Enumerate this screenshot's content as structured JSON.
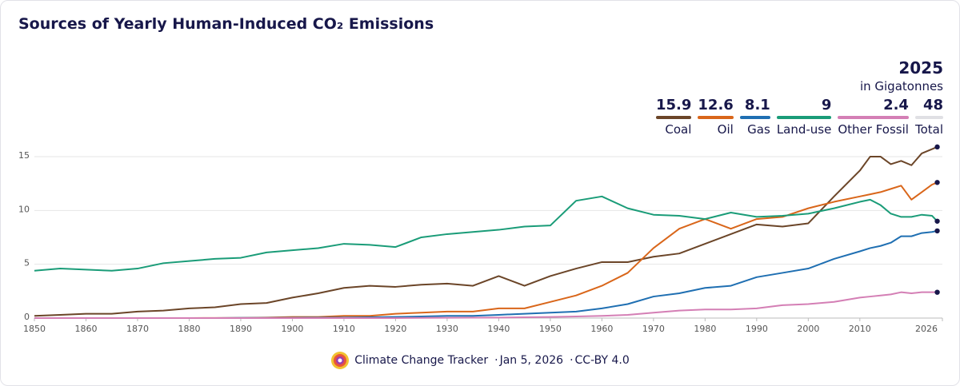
{
  "chart_data": {
    "type": "line",
    "title": "Sources of Yearly Human-Induced CO₂ Emissions",
    "unit": "in Gigatonnes",
    "total": 48,
    "total_label": "Total",
    "x": [
      1850,
      1855,
      1860,
      1865,
      1870,
      1875,
      1880,
      1885,
      1890,
      1895,
      1900,
      1905,
      1910,
      1915,
      1920,
      1925,
      1930,
      1935,
      1940,
      1945,
      1950,
      1955,
      1960,
      1965,
      1970,
      1975,
      1980,
      1985,
      1990,
      1995,
      2000,
      2005,
      2010,
      2012,
      2014,
      2016,
      2018,
      2020,
      2022,
      2024,
      2025
    ],
    "series": [
      {
        "name": "Coal",
        "color": "#6b4528",
        "values": [
          0.2,
          0.3,
          0.4,
          0.4,
          0.6,
          0.7,
          0.9,
          1.0,
          1.3,
          1.4,
          1.9,
          2.3,
          2.8,
          3.0,
          2.9,
          3.1,
          3.2,
          3.0,
          3.9,
          3.0,
          3.9,
          4.6,
          5.2,
          5.2,
          5.7,
          6.0,
          6.9,
          7.8,
          8.7,
          8.5,
          8.8,
          11.3,
          13.7,
          15.0,
          15.0,
          14.3,
          14.6,
          14.2,
          15.3,
          15.7,
          15.9
        ]
      },
      {
        "name": "Oil",
        "color": "#d9661a",
        "values": [
          0,
          0,
          0,
          0,
          0,
          0,
          0,
          0.01,
          0.02,
          0.05,
          0.1,
          0.1,
          0.2,
          0.2,
          0.4,
          0.5,
          0.6,
          0.6,
          0.9,
          0.9,
          1.5,
          2.1,
          3.0,
          4.2,
          6.5,
          8.3,
          9.2,
          8.3,
          9.2,
          9.4,
          10.2,
          10.8,
          11.3,
          11.5,
          11.7,
          12.0,
          12.3,
          11.0,
          11.7,
          12.4,
          12.6
        ]
      },
      {
        "name": "Gas",
        "color": "#1f6fb2",
        "values": [
          0,
          0,
          0,
          0,
          0,
          0,
          0,
          0,
          0.02,
          0.02,
          0.03,
          0.04,
          0.05,
          0.07,
          0.1,
          0.15,
          0.2,
          0.2,
          0.3,
          0.4,
          0.5,
          0.6,
          0.9,
          1.3,
          2.0,
          2.3,
          2.8,
          3.0,
          3.8,
          4.2,
          4.6,
          5.5,
          6.2,
          6.5,
          6.7,
          7.0,
          7.6,
          7.6,
          7.9,
          8.0,
          8.1
        ]
      },
      {
        "name": "Land-use",
        "color": "#1a9c78",
        "values": [
          4.4,
          4.6,
          4.5,
          4.4,
          4.6,
          5.1,
          5.3,
          5.5,
          5.6,
          6.1,
          6.3,
          6.5,
          6.9,
          6.8,
          6.6,
          7.5,
          7.8,
          8.0,
          8.2,
          8.5,
          8.6,
          10.9,
          11.3,
          10.2,
          9.6,
          9.5,
          9.2,
          9.8,
          9.4,
          9.5,
          9.7,
          10.2,
          10.8,
          11.0,
          10.5,
          9.7,
          9.4,
          9.4,
          9.6,
          9.5,
          9
        ]
      },
      {
        "name": "Other Fossil",
        "color": "#d47fb5",
        "values": [
          0,
          0,
          0,
          0,
          0,
          0,
          0,
          0,
          0,
          0,
          0,
          0,
          0,
          0,
          0,
          0.02,
          0.03,
          0.04,
          0.05,
          0.07,
          0.1,
          0.15,
          0.2,
          0.3,
          0.5,
          0.7,
          0.8,
          0.8,
          0.9,
          1.2,
          1.3,
          1.5,
          1.9,
          2.0,
          2.1,
          2.2,
          2.4,
          2.3,
          2.4,
          2.4,
          2.4
        ]
      }
    ],
    "xlim": [
      1850,
      2026
    ],
    "ylim": [
      0,
      16
    ],
    "xticks": [
      1850,
      1860,
      1870,
      1880,
      1890,
      1900,
      1910,
      1920,
      1930,
      1940,
      1950,
      1960,
      1970,
      1980,
      1990,
      2000,
      2010,
      2026
    ],
    "yticks": [
      0,
      5,
      10,
      15
    ],
    "grid": true,
    "source": "Climate Change Tracker",
    "date": "Jan 5, 2026",
    "license": "CC-BY 4.0"
  }
}
